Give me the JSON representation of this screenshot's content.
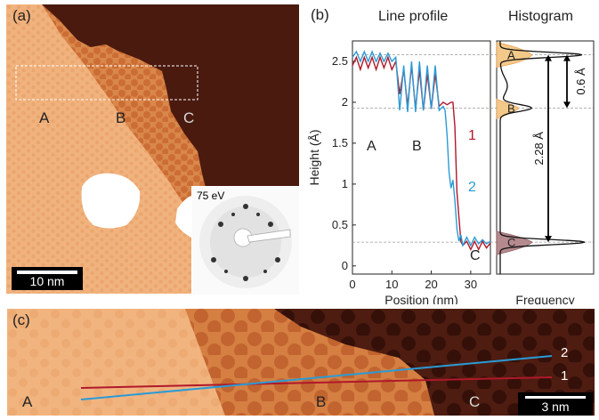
{
  "panel_a": {
    "label": "(a)",
    "regions": [
      "A",
      "B",
      "C"
    ],
    "scalebar": "10 nm",
    "inset": {
      "energy": "75 eV"
    }
  },
  "panel_b": {
    "label": "(b)",
    "line_profile_title": "Line profile",
    "histogram_title": "Histogram",
    "xlabel": "Position (nm)",
    "ylabel": "Height (Å)",
    "hist_xlabel": "Frequency",
    "region_labels": [
      "A",
      "B",
      "C"
    ],
    "curve_labels": [
      "1",
      "2"
    ],
    "annotations": [
      "2.28 Å",
      "0.6 Å"
    ],
    "colors": {
      "curve1": "#b0182a",
      "curve2": "#2a9bd6",
      "hist_A": "#f3c98a",
      "hist_C": "#b58a8e"
    }
  },
  "panel_c": {
    "label": "(c)",
    "regions": [
      "A",
      "B",
      "C"
    ],
    "line_labels": [
      "2",
      "1"
    ],
    "scalebar": "3 nm"
  },
  "chart_data": [
    {
      "type": "line",
      "title": "Line profile",
      "xlabel": "Position (nm)",
      "ylabel": "Height (Å)",
      "xlim": [
        0,
        35
      ],
      "ylim": [
        -0.1,
        2.75
      ],
      "xticks": [
        0,
        10,
        20,
        30
      ],
      "yticks": [
        0,
        0.5,
        1,
        1.5,
        2,
        2.5
      ],
      "series": [
        {
          "name": "1",
          "color": "#b0182a",
          "x": [
            0,
            1,
            2,
            3,
            4,
            5,
            6,
            7,
            8,
            9,
            10,
            11,
            12,
            13,
            14,
            15,
            16,
            17,
            18,
            19,
            20,
            21,
            22,
            23,
            24,
            25,
            25.5,
            26,
            26.5,
            27,
            27.5,
            28,
            29,
            30,
            31,
            32,
            33,
            34,
            35
          ],
          "y": [
            2.45,
            2.55,
            2.4,
            2.55,
            2.42,
            2.55,
            2.4,
            2.55,
            2.42,
            2.55,
            2.4,
            2.5,
            2.1,
            2.4,
            1.95,
            2.45,
            1.92,
            2.4,
            1.9,
            2.35,
            1.92,
            2.35,
            1.95,
            2.0,
            1.97,
            2.0,
            2.0,
            1.7,
            0.9,
            0.6,
            0.3,
            0.25,
            0.3,
            0.2,
            0.3,
            0.2,
            0.3,
            0.22,
            0.28
          ]
        },
        {
          "name": "2",
          "color": "#2a9bd6",
          "x": [
            0,
            1,
            2,
            3,
            4,
            5,
            6,
            7,
            8,
            9,
            10,
            11,
            12,
            13,
            14,
            15,
            16,
            17,
            18,
            19,
            20,
            21,
            22,
            23,
            23.5,
            24,
            24.5,
            25,
            25.5,
            26,
            26.5,
            27,
            27.5,
            28,
            29,
            30,
            31,
            32,
            33,
            34,
            35
          ],
          "y": [
            2.55,
            2.62,
            2.5,
            2.62,
            2.5,
            2.62,
            2.5,
            2.6,
            2.5,
            2.6,
            2.5,
            2.55,
            1.9,
            2.45,
            1.88,
            2.5,
            1.88,
            2.5,
            1.9,
            2.45,
            1.92,
            2.45,
            1.9,
            1.95,
            1.9,
            1.6,
            1.15,
            0.95,
            1.05,
            0.8,
            0.45,
            0.3,
            0.38,
            0.25,
            0.35,
            0.25,
            0.35,
            0.27,
            0.32,
            0.27,
            0.3
          ]
        }
      ],
      "reference_lines": [
        2.58,
        1.93,
        0.29
      ],
      "region_labels": [
        "A",
        "B",
        "C"
      ]
    },
    {
      "type": "area",
      "title": "Histogram",
      "xlabel": "Frequency",
      "orientation": "horizontal",
      "peaks": [
        {
          "label": "A",
          "height": 2.58
        },
        {
          "label": "B",
          "height": 1.93
        },
        {
          "label": "C",
          "height": 0.29
        }
      ],
      "annotations": [
        {
          "text": "0.6 Å",
          "from": 1.93,
          "to": 2.58
        },
        {
          "text": "2.28 Å",
          "from": 0.29,
          "to": 2.58
        }
      ]
    }
  ]
}
